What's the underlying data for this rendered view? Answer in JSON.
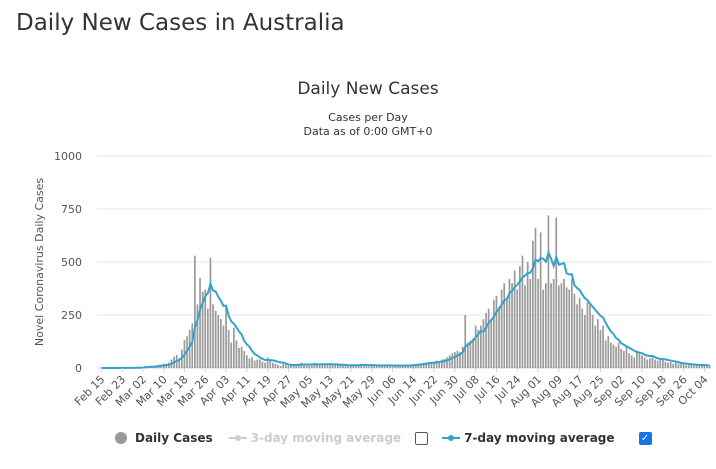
{
  "page_title": "Daily New Cases in Australia",
  "colors": {
    "bars": "#9a9a9a",
    "avg7": "#33a3cc",
    "avg3_disabled": "#cccccc",
    "grid": "#e6e6e6",
    "checkbox": "#1a73e8"
  },
  "legend": {
    "daily": "Daily Cases",
    "avg3": "3-day moving average",
    "avg3_checked": false,
    "avg7": "7-day moving average",
    "avg7_checked": true
  },
  "chart_data": {
    "type": "bar",
    "title": "Daily New Cases",
    "subtitle_1": "Cases per Day",
    "subtitle_2": "Data as of 0:00 GMT+0",
    "ylabel": "Novel Coronavirus Daily Cases",
    "xlabel": "",
    "ylim": [
      0,
      1000
    ],
    "yticks": [
      "0",
      "250",
      "500",
      "750",
      "1000"
    ],
    "start_date": "Feb 15",
    "tick_interval_days": 8,
    "xticks": [
      "Feb 15",
      "Feb 23",
      "Mar 02",
      "Mar 10",
      "Mar 18",
      "Mar 26",
      "Apr 03",
      "Apr 11",
      "Apr 19",
      "Apr 27",
      "May 05",
      "May 13",
      "May 21",
      "May 29",
      "Jun 06",
      "Jun 14",
      "Jun 22",
      "Jun 30",
      "Jul 08",
      "Jul 16",
      "Jul 24",
      "Aug 01",
      "Aug 09",
      "Aug 17",
      "Aug 25",
      "Sep 02",
      "Sep 10",
      "Sep 18",
      "Sep 26",
      "Oct 04"
    ],
    "series": [
      {
        "name": "Daily Cases",
        "type": "bar",
        "values": [
          0,
          0,
          0,
          0,
          0,
          0,
          1,
          0,
          1,
          0,
          0,
          0,
          2,
          1,
          2,
          3,
          4,
          10,
          8,
          11,
          5,
          9,
          16,
          12,
          21,
          20,
          25,
          40,
          52,
          62,
          46,
          87,
          131,
          150,
          180,
          210,
          530,
          300,
          425,
          360,
          370,
          280,
          520,
          300,
          270,
          250,
          230,
          200,
          290,
          180,
          120,
          190,
          130,
          95,
          100,
          80,
          60,
          45,
          50,
          35,
          40,
          40,
          30,
          25,
          50,
          40,
          25,
          20,
          15,
          10,
          20,
          15,
          10,
          12,
          15,
          18,
          20,
          25,
          15,
          10,
          12,
          20,
          25,
          15,
          20,
          20,
          14,
          16,
          20,
          15,
          18,
          12,
          15,
          10,
          12,
          10,
          15,
          14,
          16,
          12,
          20,
          15,
          10,
          8,
          15,
          12,
          14,
          10,
          12,
          10,
          14,
          15,
          10,
          8,
          12,
          10,
          15,
          14,
          12,
          15,
          16,
          18,
          20,
          22,
          25,
          26,
          28,
          25,
          30,
          35,
          30,
          40,
          42,
          50,
          60,
          70,
          75,
          80,
          75,
          100,
          250,
          120,
          130,
          140,
          200,
          180,
          200,
          230,
          260,
          280,
          230,
          320,
          340,
          290,
          370,
          400,
          330,
          420,
          400,
          460,
          370,
          480,
          530,
          390,
          500,
          420,
          600,
          660,
          420,
          640,
          370,
          400,
          720,
          400,
          420,
          710,
          390,
          400,
          420,
          380,
          370,
          420,
          350,
          300,
          330,
          280,
          250,
          310,
          300,
          250,
          200,
          230,
          180,
          200,
          130,
          150,
          120,
          110,
          100,
          120,
          90,
          80,
          100,
          70,
          60,
          50,
          80,
          70,
          60,
          50,
          40,
          45,
          50,
          40,
          35,
          40,
          45,
          30,
          25,
          28,
          20,
          25,
          20,
          20,
          18,
          15,
          16,
          14,
          12,
          15,
          14,
          12,
          13,
          10,
          11
        ]
      },
      {
        "name": "7-day moving average",
        "type": "line",
        "window": 7,
        "derived_from": "Daily Cases"
      }
    ]
  }
}
